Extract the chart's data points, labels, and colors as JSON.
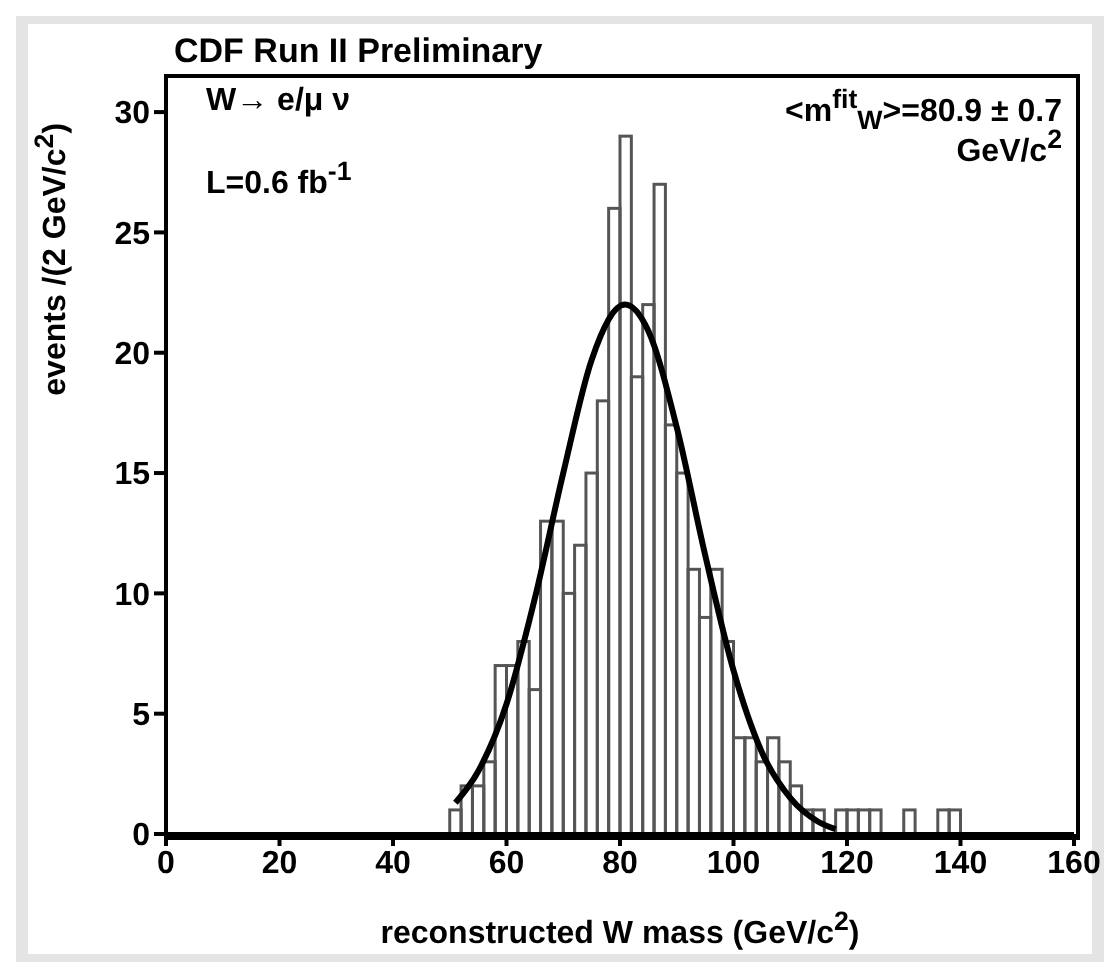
{
  "chart_data": {
    "type": "histogram",
    "title": "CDF Run II Preliminary",
    "xlabel": "reconstructed W mass (GeV/c$^{2}$)",
    "ylabel": "events /(2 GeV/c$^{2}$)",
    "annotations": [
      "W→ e/μ ν",
      "L=0.6 fb$^{-1}$",
      "<m$^{fit}$$_{W}$>=80.9 ± 0.7",
      "GeV/c$^{2}$"
    ],
    "bins": [
      50,
      52,
      54,
      56,
      58,
      60,
      62,
      64,
      66,
      68,
      70,
      72,
      74,
      76,
      78,
      80,
      82,
      84,
      86,
      88,
      90,
      92,
      94,
      96,
      98,
      100,
      102,
      104,
      106,
      108,
      110,
      112,
      114,
      116,
      118,
      120,
      122,
      124,
      126,
      128,
      130,
      132,
      134,
      136,
      138,
      140,
      142
    ],
    "values": [
      1,
      2,
      2,
      3,
      7,
      7,
      8,
      6,
      13,
      13,
      10,
      12,
      15,
      18,
      26,
      29,
      19,
      22,
      27,
      17,
      15,
      11,
      9,
      11,
      8,
      4,
      4,
      3,
      4,
      3,
      2,
      1,
      1,
      0,
      1,
      1,
      1,
      1,
      0,
      0,
      1,
      0,
      0,
      1,
      1,
      0
    ],
    "color": "#555555",
    "series": [
      {
        "type": "line",
        "color": "#000000",
        "x": [
          51,
          55,
          60,
          65,
          70,
          75,
          80.9,
          85,
          90,
          95,
          100,
          105,
          110,
          115,
          118
        ],
        "values": [
          1.3,
          2.6,
          5.4,
          9.8,
          15.0,
          19.7,
          22.0,
          20.9,
          16.9,
          11.6,
          6.8,
          3.4,
          1.5,
          0.5,
          0.2
        ]
      }
    ],
    "xlim": [
      0,
      160
    ],
    "xticks": [
      0,
      20,
      40,
      60,
      80,
      100,
      120,
      140,
      160
    ],
    "ylim": [
      0,
      31.5
    ],
    "yticks": [
      0,
      5,
      10,
      15,
      20,
      25,
      30
    ],
    "grid": false,
    "legend": false
  }
}
